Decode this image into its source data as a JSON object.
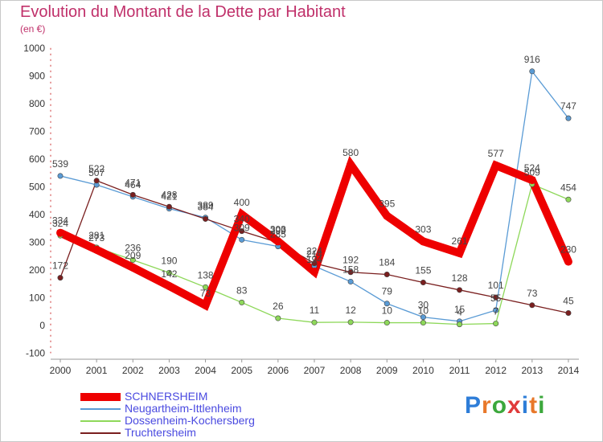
{
  "header": {
    "title": "Evolution du Montant de la Dette par Habitant",
    "subtitle": "(en €)"
  },
  "logo": {
    "text": "Proxiti",
    "colors": [
      "#2e7dd8",
      "#e8782a",
      "#3ca83c",
      "#e03a3a",
      "#2e7dd8",
      "#e8782a",
      "#3ca83c"
    ]
  },
  "chart_data": {
    "type": "line",
    "title": "Evolution du Montant de la Dette par Habitant",
    "subtitle": "(en €)",
    "x": [
      "2000",
      "2001",
      "2002",
      "2003",
      "2004",
      "2005",
      "2006",
      "2007",
      "2008",
      "2009",
      "2010",
      "2011",
      "2012",
      "2013",
      "2014"
    ],
    "ylim": [
      -100,
      1000
    ],
    "yticks": [
      -100,
      0,
      100,
      200,
      300,
      400,
      500,
      600,
      700,
      800,
      900,
      1000
    ],
    "grid": false,
    "legend_position": "bottom-left",
    "series": [
      {
        "name": "SCHNERSHEIM",
        "color": "#ee0000",
        "values": [
          334,
          273,
          209,
          142,
          73,
          400,
          303,
          194,
          580,
          395,
          303,
          261,
          577,
          524,
          230
        ],
        "labels": [
          "334",
          "273",
          "209",
          "142",
          "73",
          "400",
          "303",
          "194",
          "580",
          "395",
          "303",
          "261",
          "577",
          "524",
          "230"
        ]
      },
      {
        "name": "Neugartheim-Ittlenheim",
        "color": "#5a9bd5",
        "values": [
          539,
          507,
          464,
          421,
          389,
          309,
          285,
          214,
          158,
          79,
          30,
          15,
          55,
          916,
          747
        ],
        "labels": [
          "539",
          "507",
          "464",
          "421",
          "389",
          "309",
          "285",
          "214",
          "158",
          "79",
          "30",
          "15",
          "55",
          "916",
          "747"
        ]
      },
      {
        "name": "Dossenheim-Kochersberg",
        "color": "#8ed85a",
        "values": [
          324,
          281,
          236,
          190,
          138,
          83,
          26,
          11,
          12,
          10,
          10,
          4,
          7,
          509,
          454
        ],
        "labels": [
          "324",
          "281",
          "236",
          "190",
          "138",
          "83",
          "26",
          "11",
          "12",
          "10",
          "10",
          "4",
          "7",
          "509",
          "454"
        ]
      },
      {
        "name": "Truchtersheim",
        "color": "#7a1f1f",
        "values": [
          172,
          522,
          471,
          428,
          384,
          340,
          299,
          224,
          192,
          184,
          155,
          128,
          101,
          73,
          45
        ],
        "labels": [
          "172",
          "522",
          "471",
          "428",
          "384",
          "340",
          "299",
          "224",
          "192",
          "184",
          "155",
          "128",
          "101",
          "73",
          "45"
        ]
      }
    ]
  }
}
